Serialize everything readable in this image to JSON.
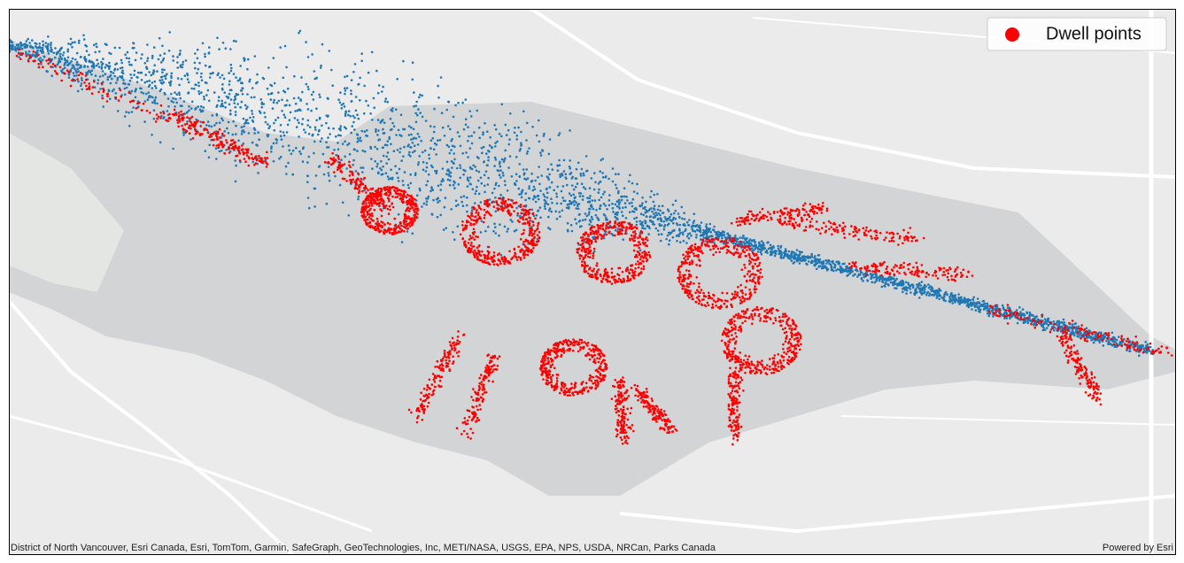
{
  "legend": {
    "items": [
      {
        "label": "Dwell points",
        "color": "#ff0000"
      }
    ]
  },
  "attribution": "District of North Vancouver, Esri Canada, Esri, TomTom, Garmin, SafeGraph, GeoTechnologies, Inc, METI/NASA, USGS, EPA, NPS, USDA, NRCan, Parks Canada",
  "powered_by": "Powered by Esri"
}
